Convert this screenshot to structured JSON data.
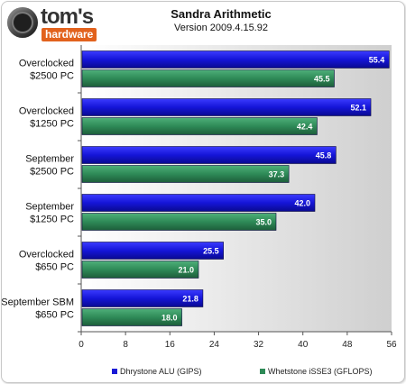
{
  "header": {
    "logo_word": "tom's",
    "logo_sub": "hardware"
  },
  "chart_data": {
    "type": "bar",
    "orientation": "horizontal",
    "title": "Sandra Arithmetic",
    "subtitle": "Version 2009.4.15.92",
    "categories": [
      [
        "Overclocked",
        "$2500 PC"
      ],
      [
        "Overclocked",
        "$1250 PC"
      ],
      [
        "September",
        "$2500 PC"
      ],
      [
        "September",
        "$1250 PC"
      ],
      [
        "Overclocked",
        "$650 PC"
      ],
      [
        "September SBM",
        "$650 PC"
      ]
    ],
    "series": [
      {
        "name": "Dhrystone ALU (GIPS)",
        "color": "#1a1ad6",
        "values": [
          55.4,
          52.1,
          45.8,
          42.0,
          25.5,
          21.8
        ],
        "labels": [
          "55.4",
          "52.1",
          "45.8",
          "42.0",
          "25.5",
          "21.8"
        ]
      },
      {
        "name": "Whetstone iSSE3 (GFLOPS)",
        "color": "#2e8a57",
        "values": [
          45.5,
          42.4,
          37.3,
          35.0,
          21.0,
          18.0
        ],
        "labels": [
          "45.5",
          "42.4",
          "37.3",
          "35.0",
          "21.0",
          "18.0"
        ]
      }
    ],
    "xlim": [
      0,
      56
    ],
    "xticks": [
      "0",
      "8",
      "16",
      "24",
      "32",
      "40",
      "48",
      "56"
    ],
    "legend_position": "bottom",
    "grid": false
  }
}
